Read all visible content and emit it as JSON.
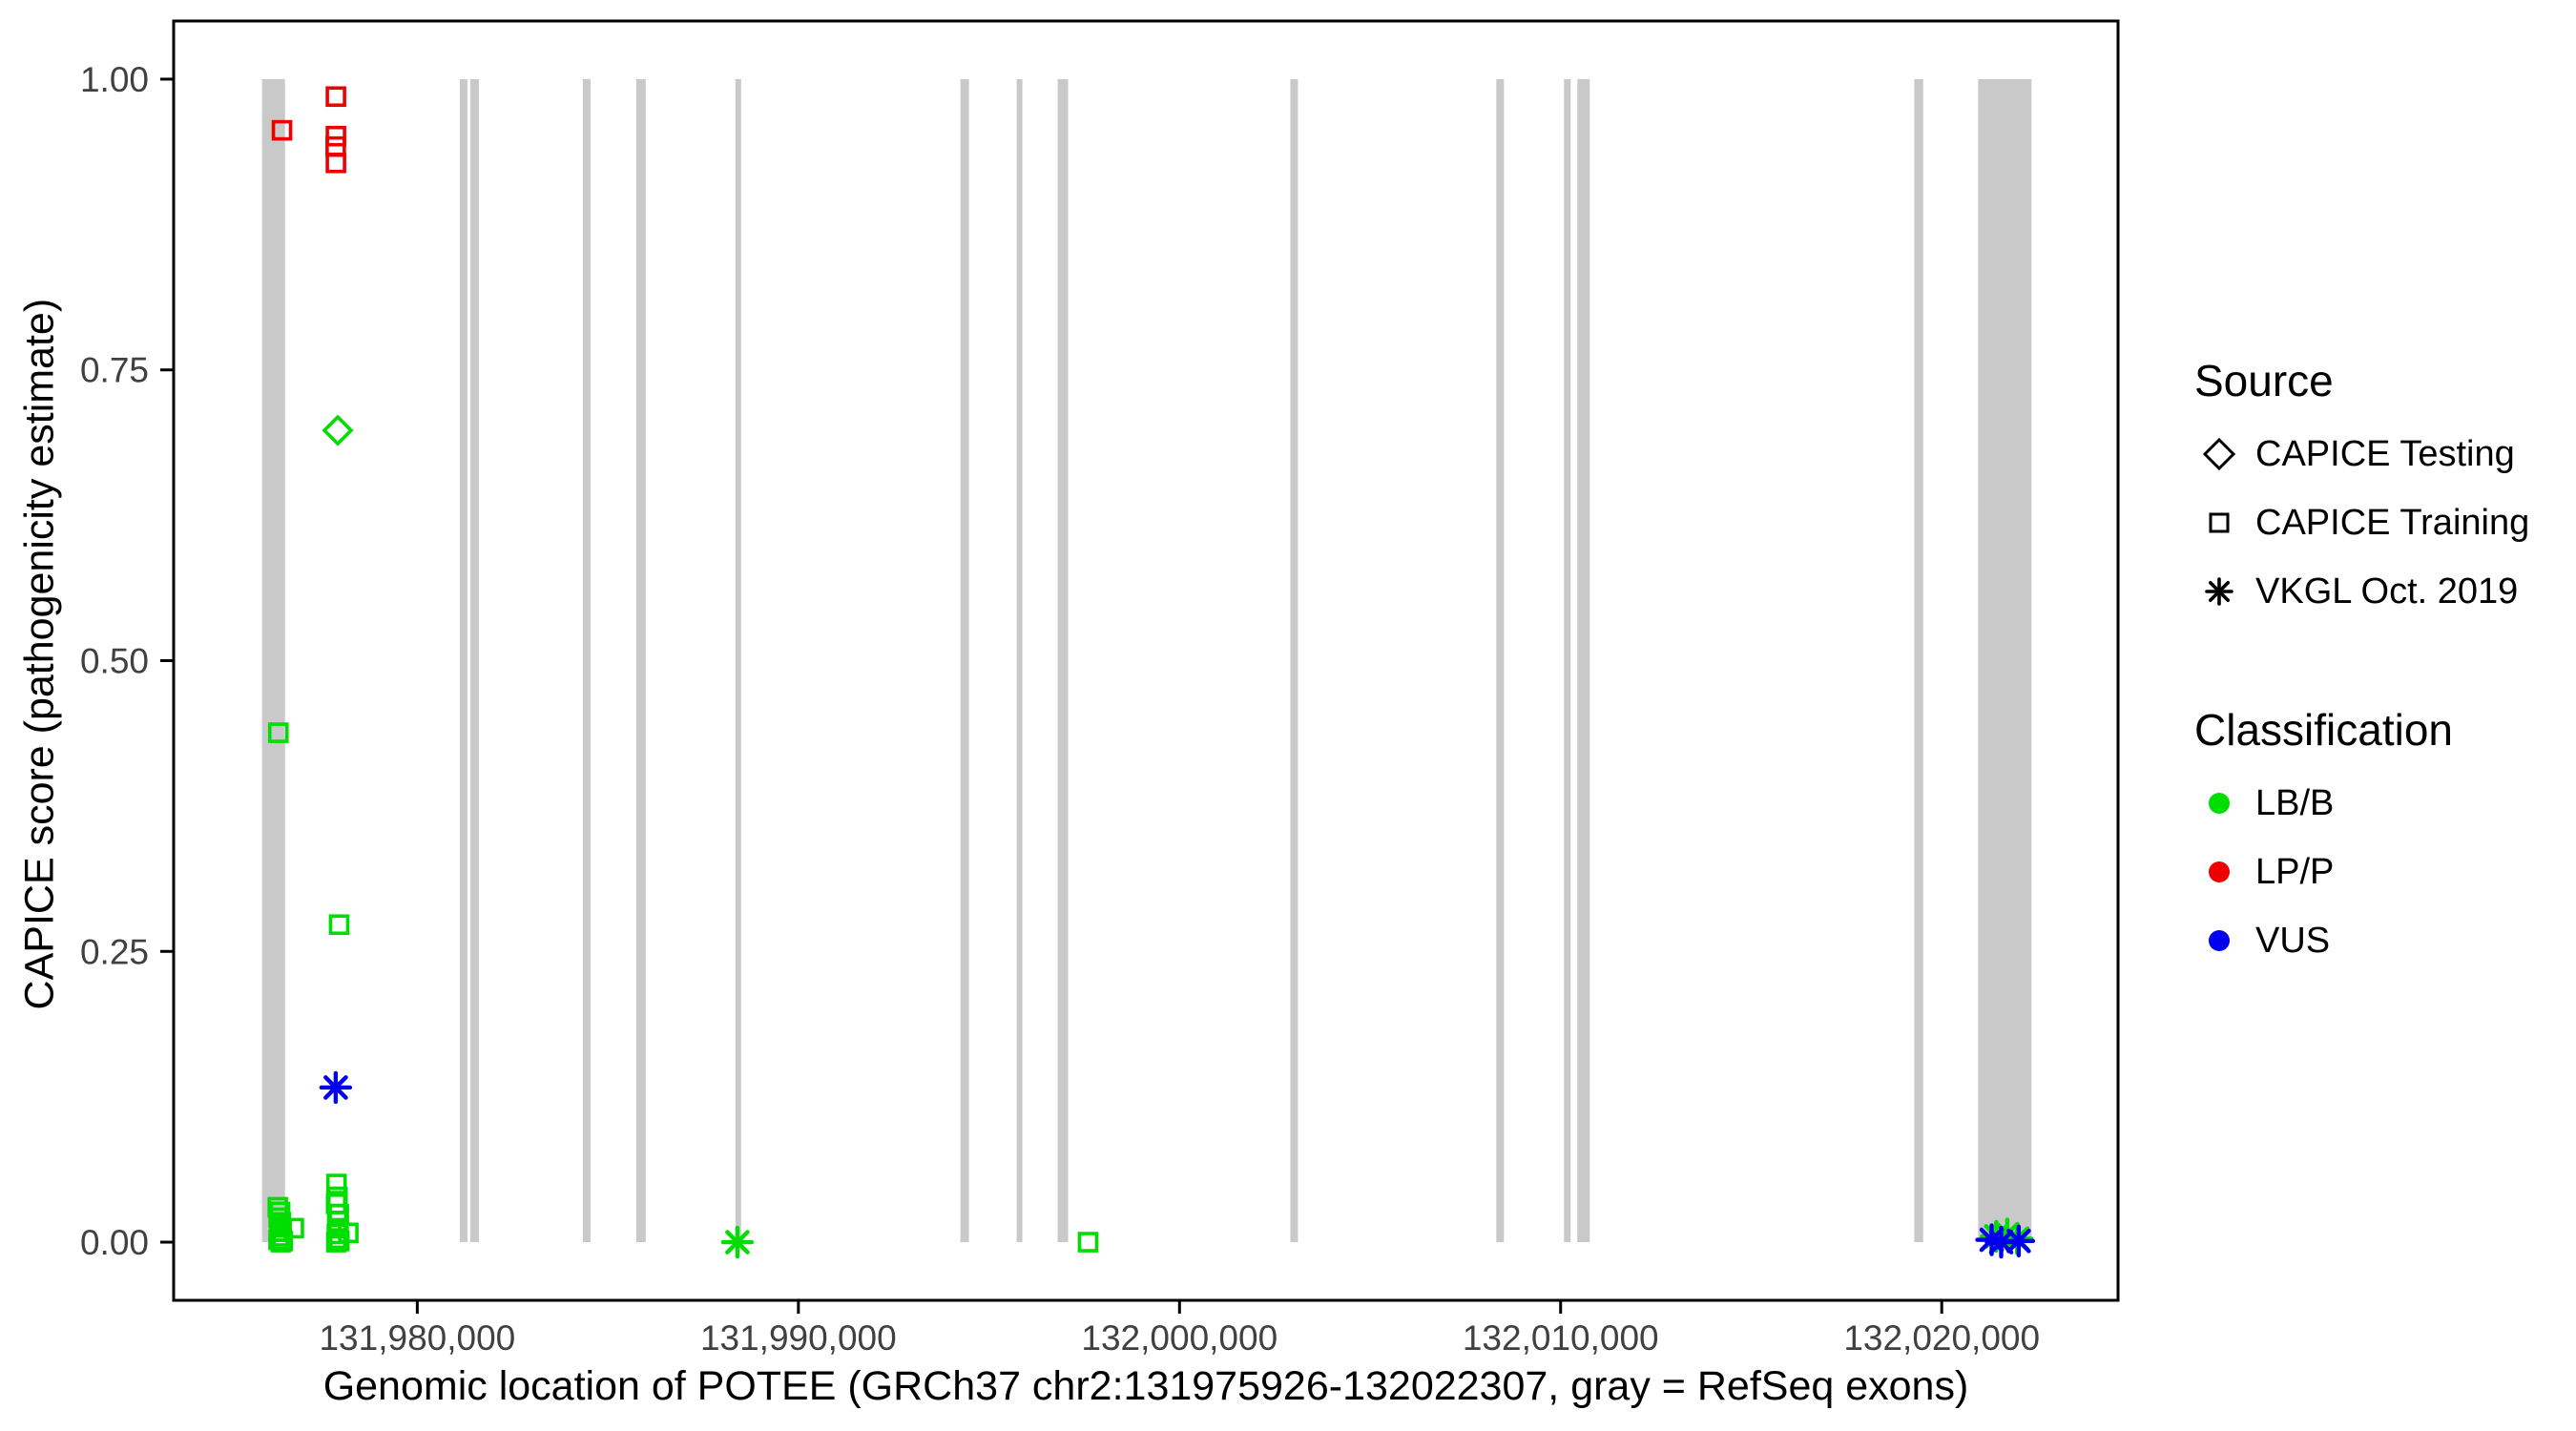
{
  "figure_background": "#FFFFFF",
  "axis_x": {
    "title": "Genomic location of POTEE (GRCh37 chr2:131975926-132022307, gray = RefSeq exons)",
    "ticks": [
      {
        "value": 131980000,
        "label": "131,980,000"
      },
      {
        "value": 131990000,
        "label": "131,990,000"
      },
      {
        "value": 132000000,
        "label": "132,000,000"
      },
      {
        "value": 132010000,
        "label": "132,010,000"
      },
      {
        "value": 132020000,
        "label": "132,020,000"
      }
    ]
  },
  "axis_y": {
    "title": "CAPICE score (pathogenicity estimate)",
    "ticks": [
      {
        "value": 0.0,
        "label": "0.00"
      },
      {
        "value": 0.25,
        "label": "0.25"
      },
      {
        "value": 0.5,
        "label": "0.50"
      },
      {
        "value": 0.75,
        "label": "0.75"
      },
      {
        "value": 1.0,
        "label": "1.00"
      }
    ]
  },
  "colors": {
    "exon_gray": "#C9C9C9",
    "lb_b_green": "#00DD00",
    "lp_p_red": "#EE0000",
    "vus_blue": "#0000EE",
    "axis_text": "#404040",
    "panel_border": "#000000"
  },
  "legend": {
    "source": {
      "title": "Source",
      "items": [
        {
          "label": "CAPICE Testing",
          "marker": "diamond"
        },
        {
          "label": "CAPICE Training",
          "marker": "square"
        },
        {
          "label": "VKGL Oct. 2019",
          "marker": "asterisk"
        }
      ]
    },
    "classification": {
      "title": "Classification",
      "items": [
        {
          "label": "LB/B",
          "color": "#00DD00"
        },
        {
          "label": "LP/P",
          "color": "#EE0000"
        },
        {
          "label": "VUS",
          "color": "#0000EE"
        }
      ]
    }
  },
  "chart_data": {
    "type": "scatter",
    "title": "",
    "xlabel": "Genomic location of POTEE (GRCh37 chr2:131975926-132022307, gray = RefSeq exons)",
    "ylabel": "CAPICE score (pathogenicity estimate)",
    "gene_region": {
      "chromosome": "chr2",
      "build": "GRCh37",
      "start": 131975926,
      "end": 132022307
    },
    "xlim": [
      131973607,
      132024626
    ],
    "ylim": [
      -0.05,
      1.05
    ],
    "grid": false,
    "exons_note": "gray = RefSeq exons",
    "exons": [
      [
        131975926,
        131976530
      ],
      [
        131981116,
        131981316
      ],
      [
        131981391,
        131981616
      ],
      [
        131984343,
        131984544
      ],
      [
        131985745,
        131985995
      ],
      [
        131988347,
        131988497
      ],
      [
        131994251,
        131994476
      ],
      [
        131995727,
        131995877
      ],
      [
        131996803,
        131997078
      ],
      [
        132002908,
        132003108
      ],
      [
        132008312,
        132008512
      ],
      [
        132010088,
        132010263
      ],
      [
        132010438,
        132010764
      ],
      [
        132019279,
        132019514
      ],
      [
        132020955,
        132022356
      ]
    ],
    "series": [
      {
        "name": "CAPICE Training / LB/B",
        "source": "CAPICE Training",
        "classification": "LB/B",
        "marker": "square",
        "color": "#00DD00",
        "points": [
          [
            131976355,
            0.438
          ],
          [
            131977950,
            0.273
          ],
          [
            131976340,
            0.03
          ],
          [
            131976400,
            0.026
          ],
          [
            131976365,
            0.021
          ],
          [
            131976420,
            0.017
          ],
          [
            131976380,
            0.013
          ],
          [
            131976440,
            0.009
          ],
          [
            131976400,
            0.005
          ],
          [
            131976360,
            0.002
          ],
          [
            131976420,
            0.0
          ],
          [
            131976470,
            0.001
          ],
          [
            131976760,
            0.012
          ],
          [
            131977880,
            0.05
          ],
          [
            131977905,
            0.039
          ],
          [
            131977870,
            0.033
          ],
          [
            131977940,
            0.024
          ],
          [
            131977900,
            0.018
          ],
          [
            131977935,
            0.012
          ],
          [
            131977890,
            0.007
          ],
          [
            131977915,
            0.003
          ],
          [
            131977875,
            0.0
          ],
          [
            131977955,
            0.001
          ],
          [
            131978190,
            0.008
          ],
          [
            131997600,
            0.0
          ]
        ]
      },
      {
        "name": "CAPICE Training / LP/P",
        "source": "CAPICE Training",
        "classification": "LP/P",
        "marker": "square",
        "color": "#EE0000",
        "points": [
          [
            131976450,
            0.956
          ],
          [
            131977865,
            0.985
          ],
          [
            131977865,
            0.951
          ],
          [
            131977860,
            0.942
          ],
          [
            131977865,
            0.928
          ]
        ]
      },
      {
        "name": "CAPICE Testing / LB/B",
        "source": "CAPICE Testing",
        "classification": "LB/B",
        "marker": "diamond",
        "color": "#00DD00",
        "points": [
          [
            131977913,
            0.698
          ]
        ]
      },
      {
        "name": "VKGL Oct. 2019 / LB/B",
        "source": "VKGL Oct. 2019",
        "classification": "LB/B",
        "marker": "asterisk",
        "color": "#00DD00",
        "points": [
          [
            131988400,
            0.0
          ],
          [
            132021430,
            0.005
          ],
          [
            132021720,
            0.007
          ],
          [
            132021980,
            0.003
          ]
        ]
      },
      {
        "name": "VKGL Oct. 2019 / VUS",
        "source": "VKGL Oct. 2019",
        "classification": "VUS",
        "marker": "asterisk",
        "color": "#0000EE",
        "points": [
          [
            131977860,
            0.133
          ],
          [
            132021310,
            0.002
          ],
          [
            132021560,
            0.0
          ],
          [
            132022020,
            0.001
          ]
        ]
      }
    ]
  }
}
